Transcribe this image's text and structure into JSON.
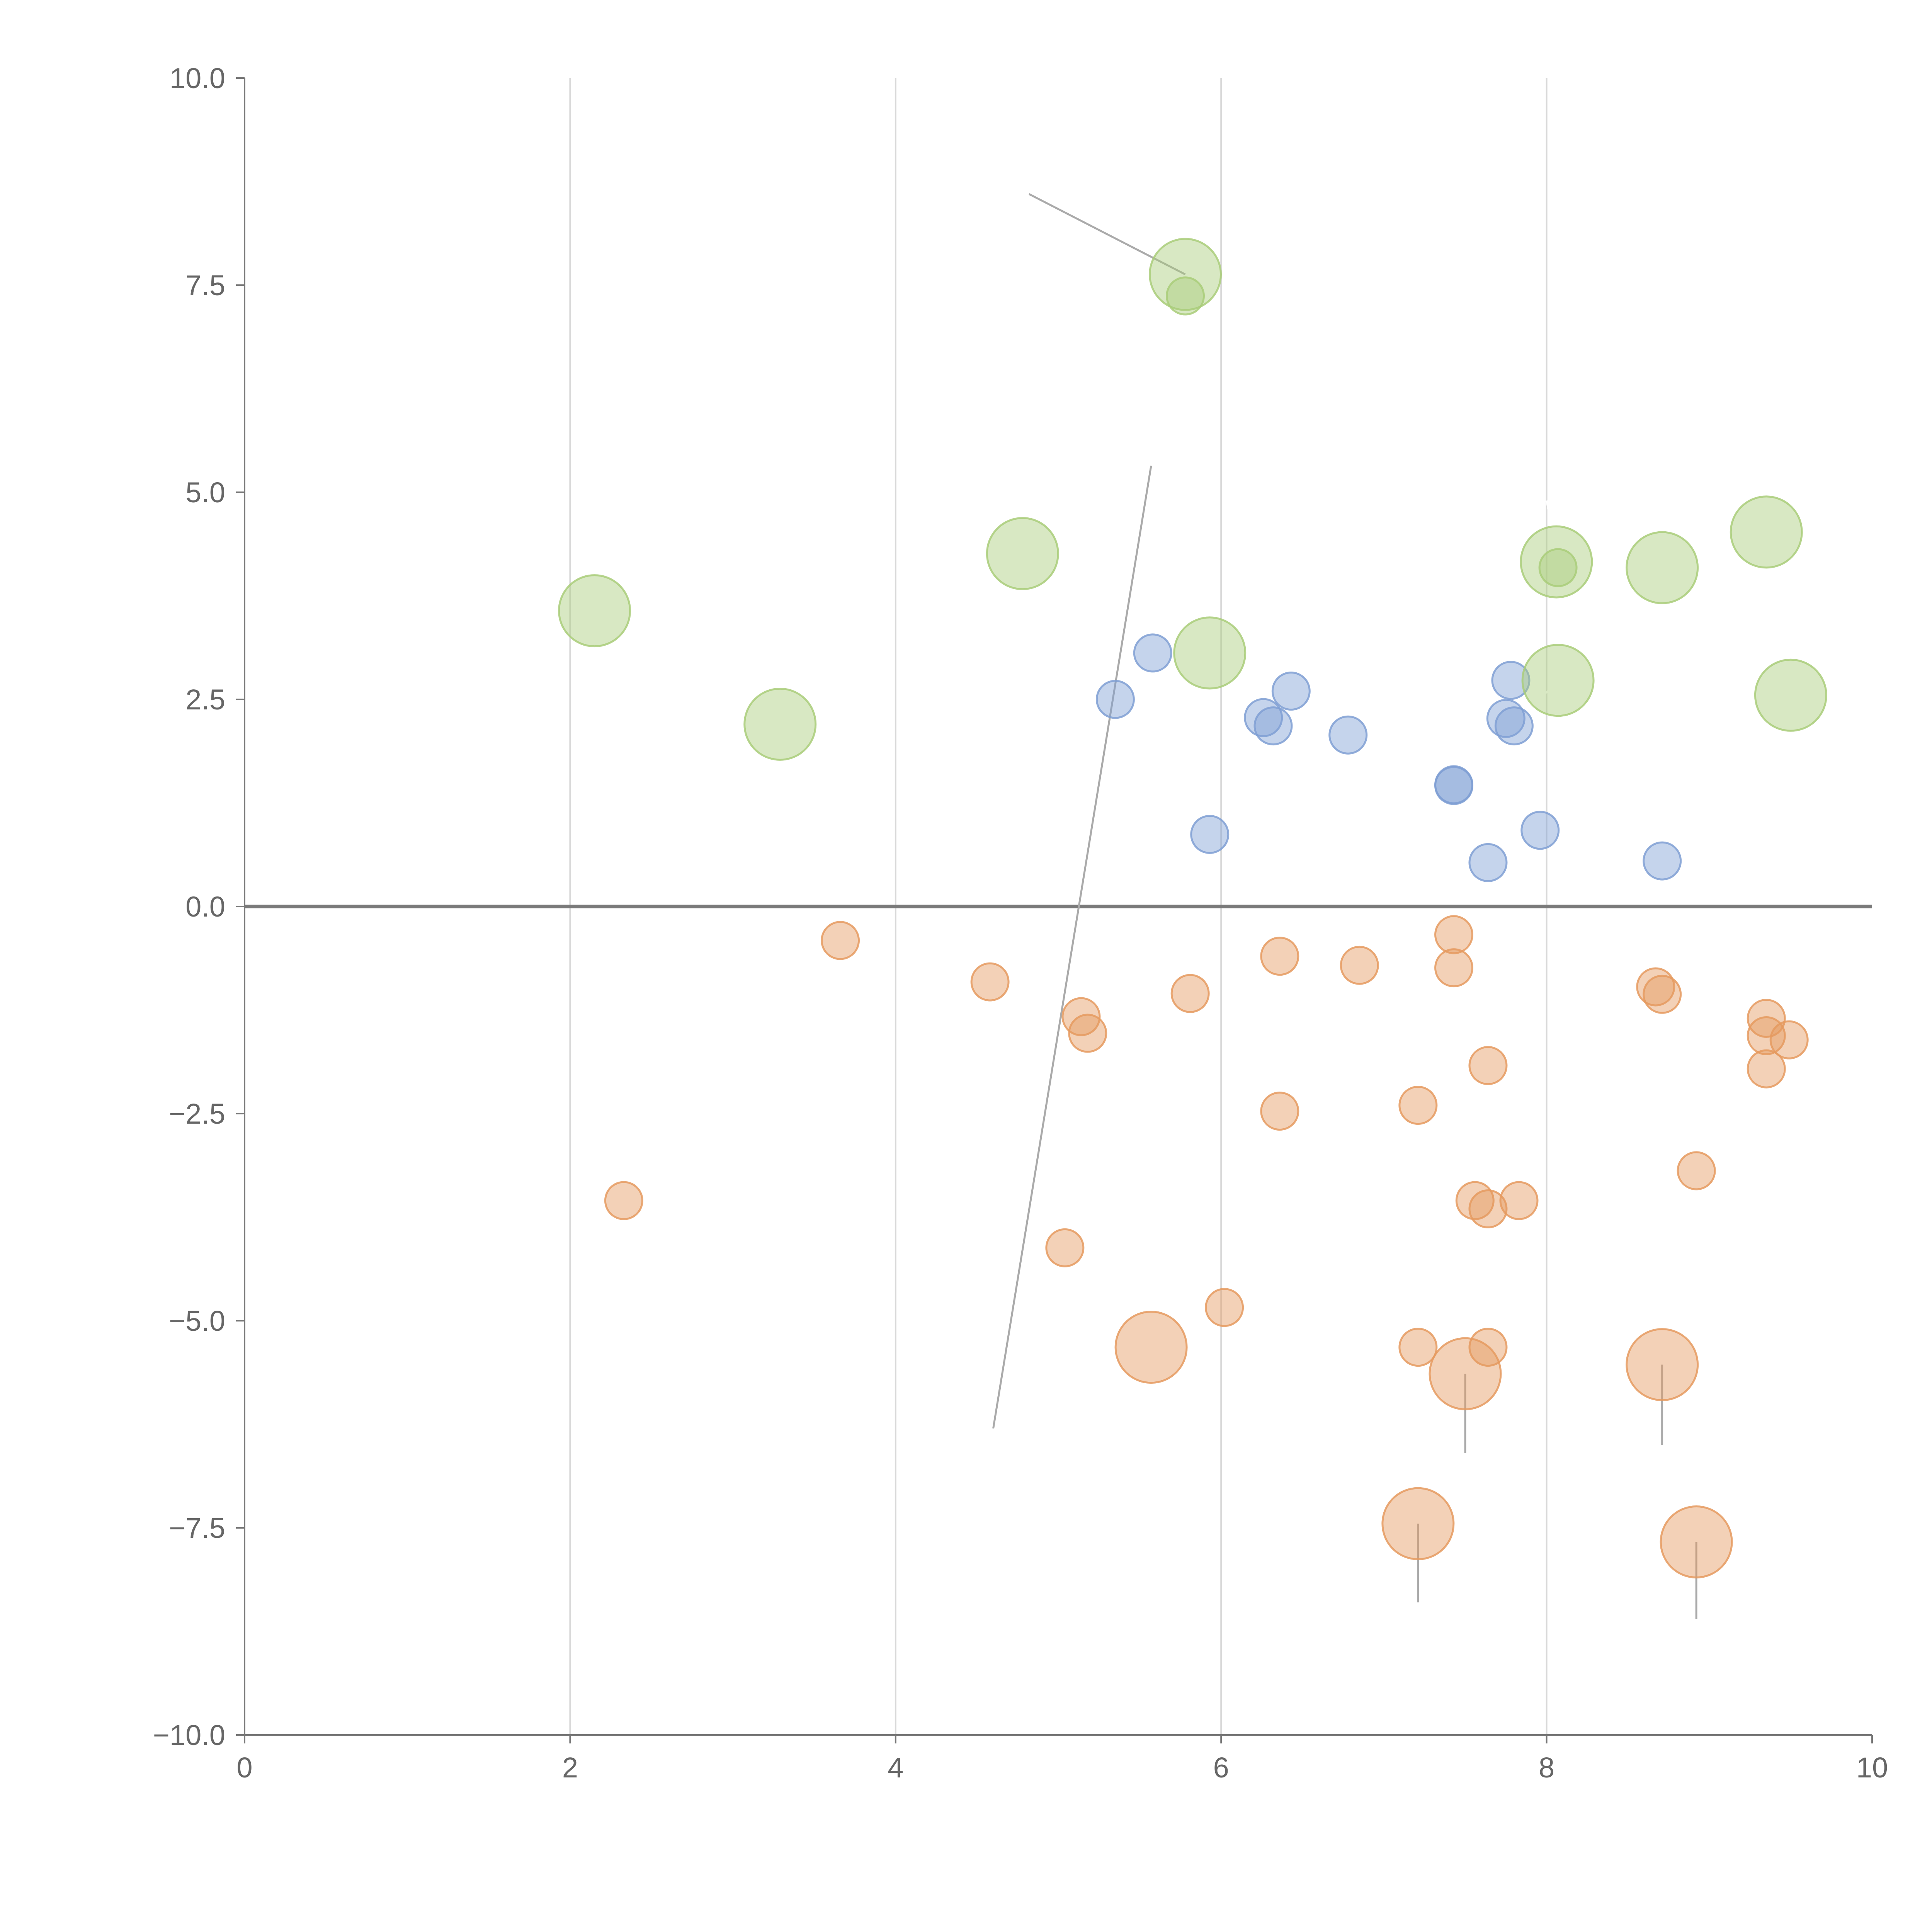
{
  "chart_data": {
    "type": "scatter",
    "title": "",
    "xlabel": "",
    "ylabel": "",
    "xlim": [
      0,
      10
    ],
    "ylim": [
      -10,
      10
    ],
    "grid": {
      "x": true,
      "y": false
    },
    "x_ticks": [
      0,
      2,
      4,
      6,
      8,
      10
    ],
    "x_tick_labels": [
      "0",
      "2",
      "4",
      "6",
      "8",
      "10"
    ],
    "y_ticks": [
      10,
      7.5,
      5,
      2.5,
      0,
      -2.5,
      -5,
      -7.5,
      -10
    ],
    "y_tick_labels": [
      "10.0",
      "7.5",
      "5.0",
      "2.5",
      "0.0",
      "−2.5",
      "−5.0",
      "−7.5",
      "−10.0"
    ],
    "reference_line_y": 0,
    "colors": {
      "blue": "#7f9fd4",
      "orange": "#e59a5f",
      "green": "#a9cc79"
    },
    "series": [
      {
        "name": "blue",
        "color_key": "blue",
        "size": "small",
        "points": [
          {
            "x": 5.58,
            "y": 3.06
          },
          {
            "x": 5.35,
            "y": 2.5
          },
          {
            "x": 6.43,
            "y": 2.6
          },
          {
            "x": 6.26,
            "y": 2.28
          },
          {
            "x": 6.32,
            "y": 2.18
          },
          {
            "x": 6.78,
            "y": 2.07
          },
          {
            "x": 7.78,
            "y": 2.73
          },
          {
            "x": 7.75,
            "y": 2.27
          },
          {
            "x": 7.8,
            "y": 2.18
          },
          {
            "x": 7.43,
            "y": 1.47
          },
          {
            "x": 7.43,
            "y": 1.46
          },
          {
            "x": 5.93,
            "y": 0.87
          },
          {
            "x": 7.64,
            "y": 0.53
          },
          {
            "x": 7.96,
            "y": 0.92
          },
          {
            "x": 8.71,
            "y": 0.55
          }
        ]
      },
      {
        "name": "orange",
        "color_key": "orange",
        "size": "mixed",
        "points": [
          {
            "x": 3.66,
            "y": -0.41,
            "size": "small"
          },
          {
            "x": 4.58,
            "y": -0.91,
            "size": "small"
          },
          {
            "x": 5.14,
            "y": -1.33,
            "size": "small"
          },
          {
            "x": 5.18,
            "y": -1.53,
            "size": "small"
          },
          {
            "x": 5.81,
            "y": -1.05,
            "size": "small"
          },
          {
            "x": 6.36,
            "y": -0.6,
            "size": "small"
          },
          {
            "x": 6.85,
            "y": -0.71,
            "size": "small"
          },
          {
            "x": 7.43,
            "y": -0.34,
            "size": "small"
          },
          {
            "x": 7.43,
            "y": -0.74,
            "size": "small"
          },
          {
            "x": 8.67,
            "y": -0.97,
            "size": "small"
          },
          {
            "x": 8.71,
            "y": -1.06,
            "size": "small"
          },
          {
            "x": 9.35,
            "y": -1.35,
            "size": "small"
          },
          {
            "x": 9.35,
            "y": -1.56,
            "size": "small"
          },
          {
            "x": 9.49,
            "y": -1.61,
            "size": "small"
          },
          {
            "x": 9.35,
            "y": -1.96,
            "size": "small"
          },
          {
            "x": 7.64,
            "y": -1.92,
            "size": "small"
          },
          {
            "x": 6.36,
            "y": -2.47,
            "size": "small"
          },
          {
            "x": 7.21,
            "y": -2.4,
            "size": "small"
          },
          {
            "x": 8.92,
            "y": -3.19,
            "size": "small"
          },
          {
            "x": 2.33,
            "y": -3.55,
            "size": "small"
          },
          {
            "x": 7.56,
            "y": -3.55,
            "size": "small"
          },
          {
            "x": 7.64,
            "y": -3.65,
            "size": "small"
          },
          {
            "x": 7.83,
            "y": -3.55,
            "size": "small"
          },
          {
            "x": 5.04,
            "y": -4.12,
            "size": "small"
          },
          {
            "x": 6.02,
            "y": -4.84,
            "size": "small"
          },
          {
            "x": 7.21,
            "y": -5.32,
            "size": "small"
          },
          {
            "x": 7.64,
            "y": -5.32,
            "size": "small"
          },
          {
            "x": 5.57,
            "y": -5.32,
            "size": "large"
          },
          {
            "x": 7.5,
            "y": -5.64,
            "size": "large"
          },
          {
            "x": 8.71,
            "y": -5.53,
            "size": "large"
          },
          {
            "x": 7.21,
            "y": -7.45,
            "size": "large"
          },
          {
            "x": 8.92,
            "y": -7.67,
            "size": "large"
          }
        ]
      },
      {
        "name": "green",
        "color_key": "green",
        "size": "mixed",
        "points": [
          {
            "x": 5.78,
            "y": 7.63,
            "size": "large"
          },
          {
            "x": 5.78,
            "y": 7.37,
            "size": "small"
          },
          {
            "x": 4.78,
            "y": 4.26,
            "size": "large"
          },
          {
            "x": 2.15,
            "y": 3.57,
            "size": "large"
          },
          {
            "x": 3.29,
            "y": 2.2,
            "size": "large"
          },
          {
            "x": 5.93,
            "y": 3.06,
            "size": "large"
          },
          {
            "x": 8.06,
            "y": 4.16,
            "size": "large"
          },
          {
            "x": 8.07,
            "y": 4.09,
            "size": "small"
          },
          {
            "x": 8.71,
            "y": 4.09,
            "size": "large"
          },
          {
            "x": 9.35,
            "y": 4.52,
            "size": "large"
          },
          {
            "x": 8.07,
            "y": 2.73,
            "size": "large"
          },
          {
            "x": 9.5,
            "y": 2.55,
            "size": "large"
          }
        ]
      }
    ],
    "leader_lines": [
      {
        "from": [
          5.78,
          7.63
        ],
        "to": [
          4.82,
          8.6
        ],
        "style": "gray"
      },
      {
        "from": [
          5.57,
          5.32
        ],
        "to": [
          4.6,
          -6.3
        ],
        "style": "gray"
      },
      {
        "from": [
          7.5,
          -5.64
        ],
        "to": [
          7.5,
          -6.6
        ],
        "style": "gray"
      },
      {
        "from": [
          8.71,
          -5.53
        ],
        "to": [
          8.71,
          -6.5
        ],
        "style": "gray"
      },
      {
        "from": [
          7.21,
          -7.45
        ],
        "to": [
          7.21,
          -8.4
        ],
        "style": "gray"
      },
      {
        "from": [
          8.92,
          -7.67
        ],
        "to": [
          8.92,
          -8.6
        ],
        "style": "gray"
      },
      {
        "from": [
          8.07,
          4.2
        ],
        "to": [
          8.0,
          4.9
        ],
        "style": "light"
      },
      {
        "from": [
          9.35,
          4.6
        ],
        "to": [
          9.3,
          5.0
        ],
        "style": "light"
      },
      {
        "from": [
          8.07,
          2.7
        ],
        "to": [
          7.76,
          2.2
        ],
        "style": "light"
      }
    ]
  }
}
